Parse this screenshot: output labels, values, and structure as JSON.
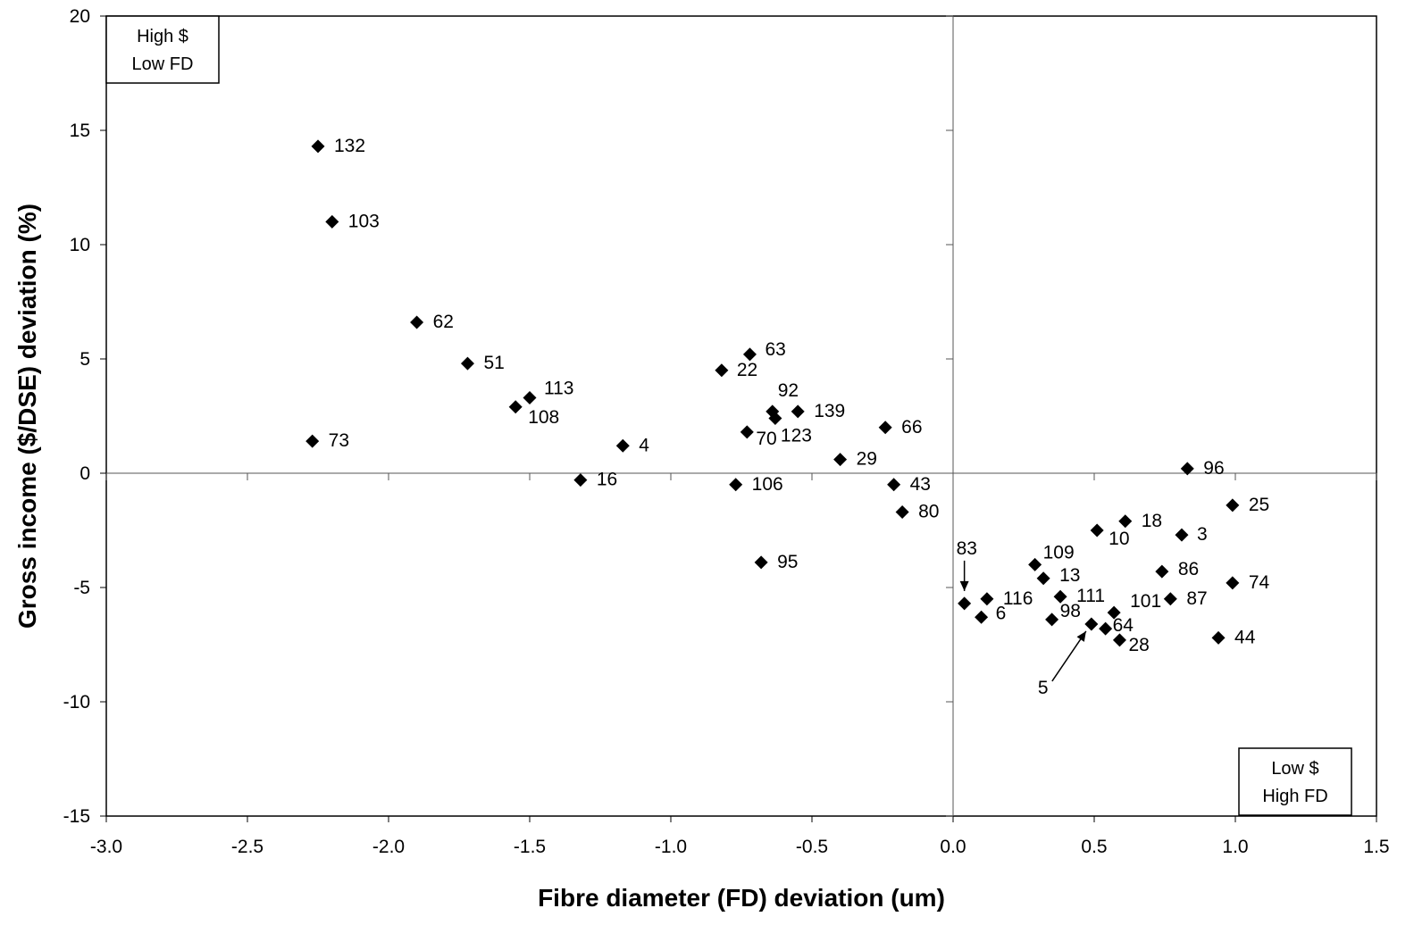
{
  "chart_data": {
    "type": "scatter",
    "title": "",
    "xlabel": "Fibre diameter (FD) deviation (um)",
    "ylabel": "Gross income ($/DSE) deviation (%)",
    "xlim": [
      -3.0,
      1.5
    ],
    "ylim": [
      -15,
      20
    ],
    "x_ticks": [
      "-3.0",
      "-2.5",
      "-2.0",
      "-1.5",
      "-1.0",
      "-0.5",
      "0.0",
      "0.5",
      "1.0",
      "1.5"
    ],
    "y_ticks": [
      "20",
      "15",
      "10",
      "5",
      "0",
      "-5",
      "-10",
      "-15"
    ],
    "grid": false,
    "marker": "diamond",
    "marker_color": "#000000",
    "quadrant_boxes": [
      {
        "line1": "High $",
        "line2": "Low FD",
        "position": "top-left"
      },
      {
        "line1": "Low $",
        "line2": "High FD",
        "position": "bottom-right"
      }
    ],
    "points": [
      {
        "label": "132",
        "x": -2.25,
        "y": 14.3
      },
      {
        "label": "103",
        "x": -2.2,
        "y": 11.0
      },
      {
        "label": "62",
        "x": -1.9,
        "y": 6.6
      },
      {
        "label": "51",
        "x": -1.72,
        "y": 4.8
      },
      {
        "label": "113",
        "x": -1.5,
        "y": 3.3
      },
      {
        "label": "108",
        "x": -1.55,
        "y": 2.9
      },
      {
        "label": "73",
        "x": -2.27,
        "y": 1.4
      },
      {
        "label": "4",
        "x": -1.17,
        "y": 1.2
      },
      {
        "label": "16",
        "x": -1.32,
        "y": -0.3
      },
      {
        "label": "63",
        "x": -0.72,
        "y": 5.2
      },
      {
        "label": "22",
        "x": -0.82,
        "y": 4.5
      },
      {
        "label": "92",
        "x": -0.64,
        "y": 2.7
      },
      {
        "label": "139",
        "x": -0.55,
        "y": 2.7
      },
      {
        "label": "123",
        "x": -0.63,
        "y": 2.4
      },
      {
        "label": "70",
        "x": -0.73,
        "y": 1.8
      },
      {
        "label": "66",
        "x": -0.24,
        "y": 2.0
      },
      {
        "label": "29",
        "x": -0.4,
        "y": 0.6
      },
      {
        "label": "106",
        "x": -0.77,
        "y": -0.5
      },
      {
        "label": "43",
        "x": -0.21,
        "y": -0.5
      },
      {
        "label": "80",
        "x": -0.18,
        "y": -1.7
      },
      {
        "label": "95",
        "x": -0.68,
        "y": -3.9
      },
      {
        "label": "96",
        "x": 0.83,
        "y": 0.2
      },
      {
        "label": "25",
        "x": 0.99,
        "y": -1.4
      },
      {
        "label": "18",
        "x": 0.61,
        "y": -2.1
      },
      {
        "label": "10",
        "x": 0.51,
        "y": -2.5
      },
      {
        "label": "3",
        "x": 0.81,
        "y": -2.7
      },
      {
        "label": "109",
        "x": 0.29,
        "y": -4.0
      },
      {
        "label": "13",
        "x": 0.32,
        "y": -4.6
      },
      {
        "label": "86",
        "x": 0.74,
        "y": -4.3
      },
      {
        "label": "74",
        "x": 0.99,
        "y": -4.8
      },
      {
        "label": "116",
        "x": 0.12,
        "y": -5.5
      },
      {
        "label": "111",
        "x": 0.38,
        "y": -5.4
      },
      {
        "label": "87",
        "x": 0.77,
        "y": -5.5
      },
      {
        "label": "83",
        "x": 0.04,
        "y": -5.7
      },
      {
        "label": "6",
        "x": 0.1,
        "y": -6.3
      },
      {
        "label": "98",
        "x": 0.35,
        "y": -6.4
      },
      {
        "label": "101",
        "x": 0.57,
        "y": -6.1
      },
      {
        "label": "5",
        "x": 0.49,
        "y": -6.6
      },
      {
        "label": "64",
        "x": 0.54,
        "y": -6.8
      },
      {
        "label": "28",
        "x": 0.59,
        "y": -7.3
      },
      {
        "label": "44",
        "x": 0.94,
        "y": -7.2
      }
    ]
  }
}
